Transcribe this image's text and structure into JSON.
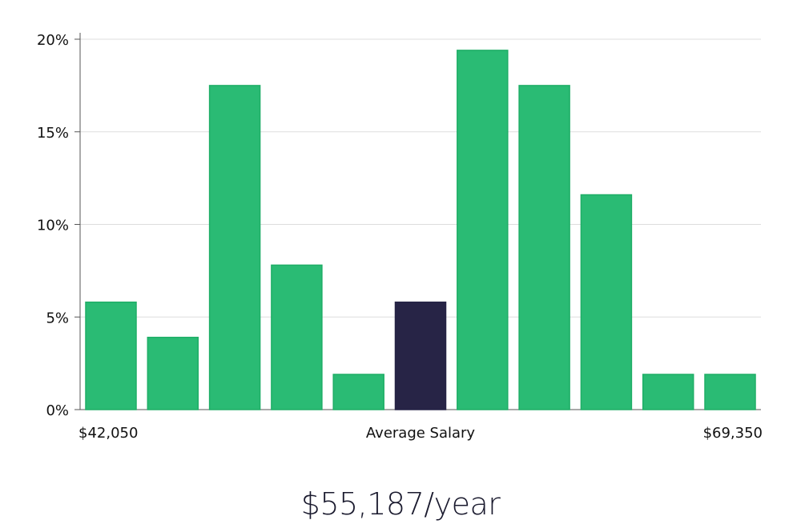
{
  "chart_data": {
    "type": "bar",
    "values": [
      5.8,
      3.9,
      17.5,
      7.8,
      1.9,
      5.8,
      19.4,
      17.5,
      11.6,
      1.9,
      1.9
    ],
    "highlight_index": 5,
    "ylim": [
      0,
      20
    ],
    "y_ticks": [
      "0%",
      "5%",
      "10%",
      "15%",
      "20%"
    ],
    "y_tick_values": [
      0,
      5,
      10,
      15,
      20
    ],
    "x_min_label": "$42,050",
    "x_center_label": "Average Salary",
    "x_max_label": "$69,350",
    "grid": true,
    "colors": {
      "bar": "#2abb74",
      "bar_edge": "#1fae67",
      "highlight": "#272446",
      "grid": "#dddddd",
      "axis": "#555555"
    }
  },
  "salary_text": "$55,187/year"
}
